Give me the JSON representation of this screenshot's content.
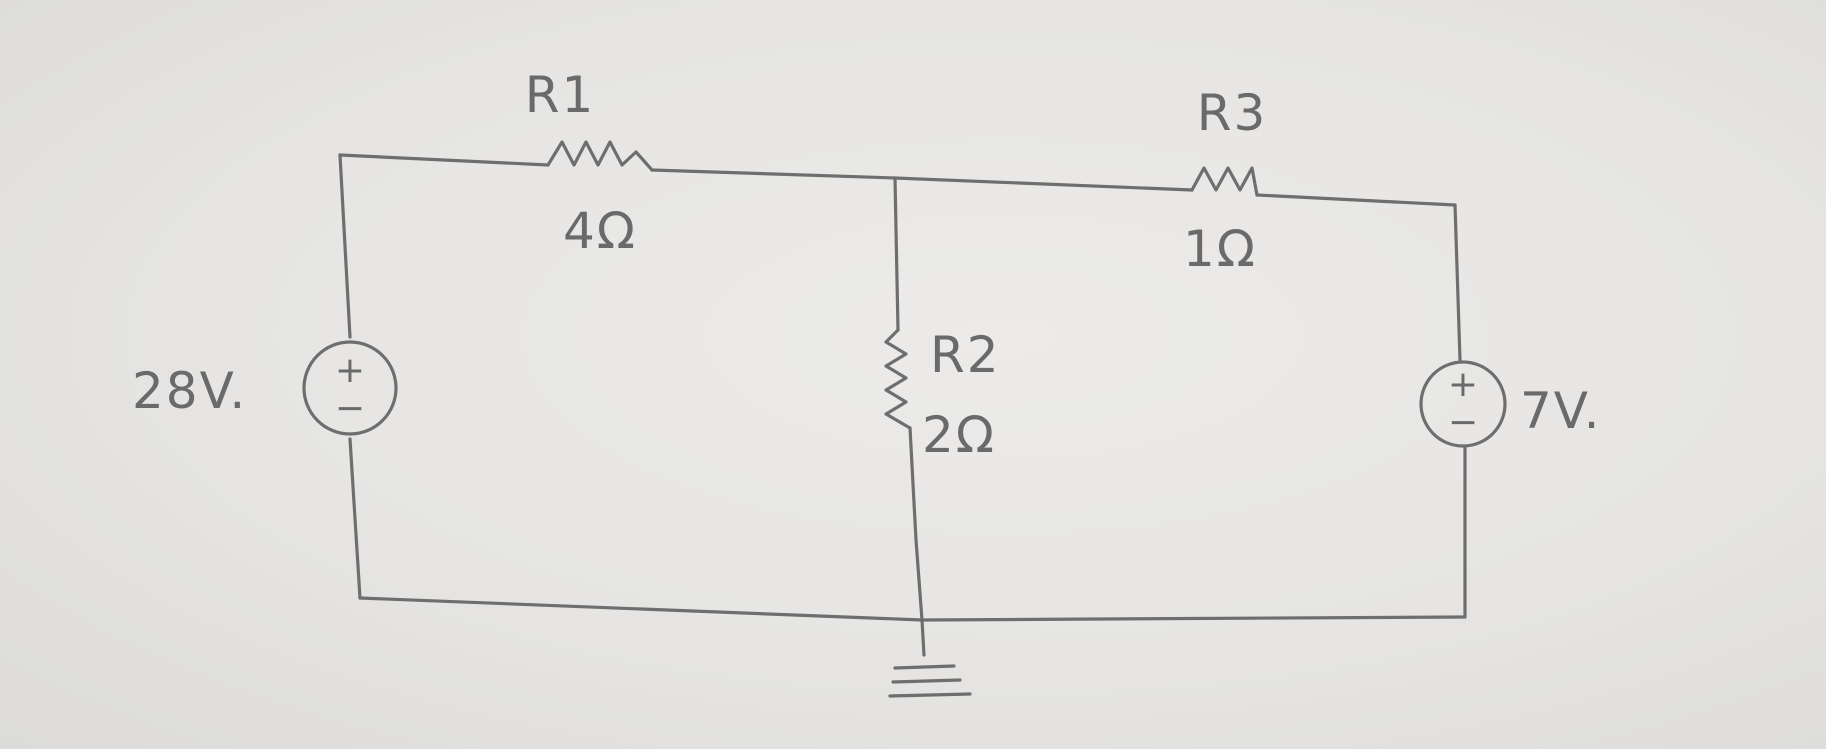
{
  "diagram": {
    "resistors": [
      {
        "name": "R1",
        "value": "4Ω"
      },
      {
        "name": "R2",
        "value": "2Ω"
      },
      {
        "name": "R3",
        "value": "1Ω"
      }
    ],
    "sources": [
      {
        "voltage": "28V.",
        "plus": "+",
        "minus": "−"
      },
      {
        "voltage": "7V.",
        "plus": "+",
        "minus": "−"
      }
    ]
  }
}
